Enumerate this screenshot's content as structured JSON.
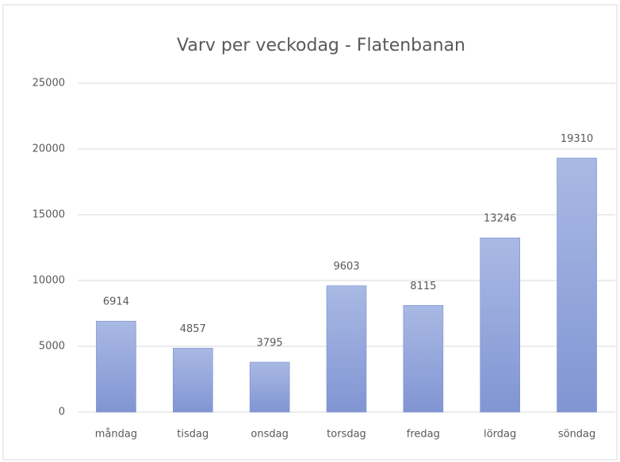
{
  "chart_data": {
    "type": "bar",
    "title": "Varv per veckodag - Flatenbanan",
    "categories": [
      "måndag",
      "tisdag",
      "onsdag",
      "torsdag",
      "fredag",
      "lördag",
      "söndag"
    ],
    "values": [
      6914,
      4857,
      3795,
      9603,
      8115,
      13246,
      19310
    ],
    "color": "#8fa3d9",
    "ylim": [
      0,
      25000
    ],
    "yticks": [
      0,
      5000,
      10000,
      15000,
      20000,
      25000
    ],
    "grid": true
  }
}
